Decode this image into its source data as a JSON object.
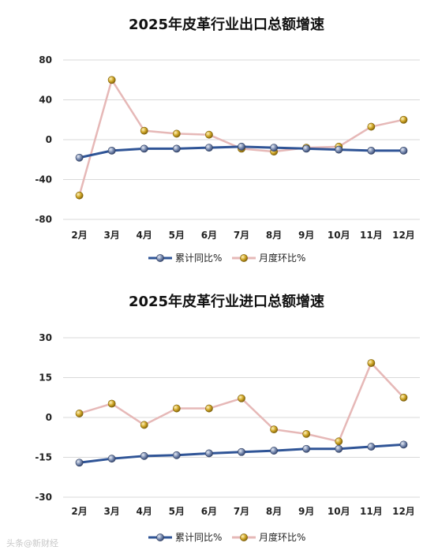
{
  "chart_data": [
    {
      "type": "line",
      "title": "2025年皮革行业出口总额增速",
      "categories": [
        "2月",
        "3月",
        "4月",
        "5月",
        "6月",
        "7月",
        "8月",
        "9月",
        "10月",
        "11月",
        "12月"
      ],
      "ylim": [
        -80,
        80
      ],
      "yticks": [
        80,
        40,
        0,
        -40,
        -80
      ],
      "grid": true,
      "legend": "bottom",
      "series": [
        {
          "name": "累计同比%",
          "color": "#2f5496",
          "marker": "#5a6f9a",
          "values": [
            -18,
            -11,
            -9,
            -9,
            -8,
            -7,
            -8,
            -9,
            -10,
            -11,
            -11
          ]
        },
        {
          "name": "月度环比%",
          "color": "#e6b8b7",
          "marker": "#c9a227",
          "values": [
            -56,
            60,
            9,
            6,
            5,
            -9,
            -12,
            -8,
            -7,
            13,
            20
          ]
        }
      ]
    },
    {
      "type": "line",
      "title": "2025年皮革行业进口总额增速",
      "categories": [
        "2月",
        "3月",
        "4月",
        "5月",
        "6月",
        "7月",
        "8月",
        "9月",
        "10月",
        "11月",
        "12月"
      ],
      "ylim": [
        -30,
        30
      ],
      "yticks": [
        30,
        15,
        0,
        -15,
        -30
      ],
      "grid": true,
      "legend": "bottom",
      "series": [
        {
          "name": "累计同比%",
          "color": "#2f5496",
          "marker": "#5a6f9a",
          "values": [
            -17,
            -15.5,
            -14.5,
            -14.2,
            -13.5,
            -13,
            -12.5,
            -11.8,
            -11.8,
            -11,
            -10.2
          ]
        },
        {
          "name": "月度环比%",
          "color": "#e6b8b7",
          "marker": "#c9a227",
          "values": [
            1.5,
            5.2,
            -2.8,
            3.4,
            3.4,
            7.2,
            -4.5,
            -6.2,
            -9,
            20.5,
            7.5
          ]
        }
      ]
    }
  ],
  "watermark": "头条@新财经"
}
